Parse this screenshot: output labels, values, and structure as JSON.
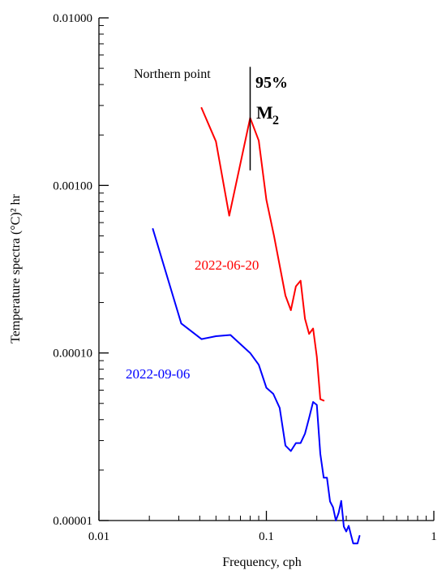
{
  "chart_data": {
    "type": "line",
    "xlabel": "Frequency, cph",
    "ylabel": "Temperature spectra (°C)² hr",
    "x_scale": "log",
    "y_scale": "log",
    "xlim": [
      0.01,
      1
    ],
    "ylim": [
      1e-05,
      0.01
    ],
    "x_ticks": [
      {
        "value": 0.01,
        "label": "0.01"
      },
      {
        "value": 0.1,
        "label": "0.1"
      },
      {
        "value": 1,
        "label": "1"
      }
    ],
    "y_ticks": [
      {
        "value": 0.01,
        "label": "0.01000"
      },
      {
        "value": 0.001,
        "label": "0.00100"
      },
      {
        "value": 0.0001,
        "label": "0.00010"
      },
      {
        "value": 1e-05,
        "label": "0.00001"
      }
    ],
    "grid": false,
    "legend": "none",
    "annotations": {
      "location": "Northern point",
      "confidence_label": "95%",
      "confidence_bar": {
        "x": 0.08,
        "y_low": 0.00123,
        "y_high": 0.0051
      },
      "tide_label": "M",
      "tide_subscript": "2"
    },
    "series": [
      {
        "name": "2022-06-20",
        "color": "#ff0000",
        "x": [
          0.041,
          0.05,
          0.06,
          0.08,
          0.09,
          0.1,
          0.111,
          0.13,
          0.14,
          0.15,
          0.16,
          0.17,
          0.18,
          0.19,
          0.2,
          0.21,
          0.22
        ],
        "y": [
          0.0029,
          0.00183,
          0.00066,
          0.00253,
          0.00185,
          0.00082,
          0.0005,
          0.00022,
          0.00018,
          0.00025,
          0.00027,
          0.00016,
          0.00013,
          0.00014,
          9.5e-05,
          5.3e-05,
          5.2e-05
        ]
      },
      {
        "name": "2022-09-06",
        "color": "#0000ff",
        "x": [
          0.021,
          0.031,
          0.041,
          0.05,
          0.061,
          0.08,
          0.09,
          0.1,
          0.11,
          0.12,
          0.13,
          0.14,
          0.15,
          0.16,
          0.17,
          0.18,
          0.19,
          0.2,
          0.21,
          0.22,
          0.23,
          0.24,
          0.25,
          0.26,
          0.27,
          0.28,
          0.29,
          0.3,
          0.31,
          0.32,
          0.33,
          0.34,
          0.35,
          0.36
        ],
        "y": [
          0.00055,
          0.00015,
          0.000121,
          0.000126,
          0.000128,
          0.0001,
          8.5e-05,
          6.2e-05,
          5.7e-05,
          4.7e-05,
          2.8e-05,
          2.6e-05,
          2.9e-05,
          2.9e-05,
          3.3e-05,
          4.1e-05,
          5.1e-05,
          4.9e-05,
          2.5e-05,
          1.8e-05,
          1.8e-05,
          1.3e-05,
          1.2e-05,
          1e-05,
          1.11e-05,
          1.31e-05,
          9.2e-06,
          8.6e-06,
          9.3e-06,
          8.2e-06,
          7.3e-06,
          7.3e-06,
          7.3e-06,
          8.1e-06
        ]
      }
    ]
  }
}
